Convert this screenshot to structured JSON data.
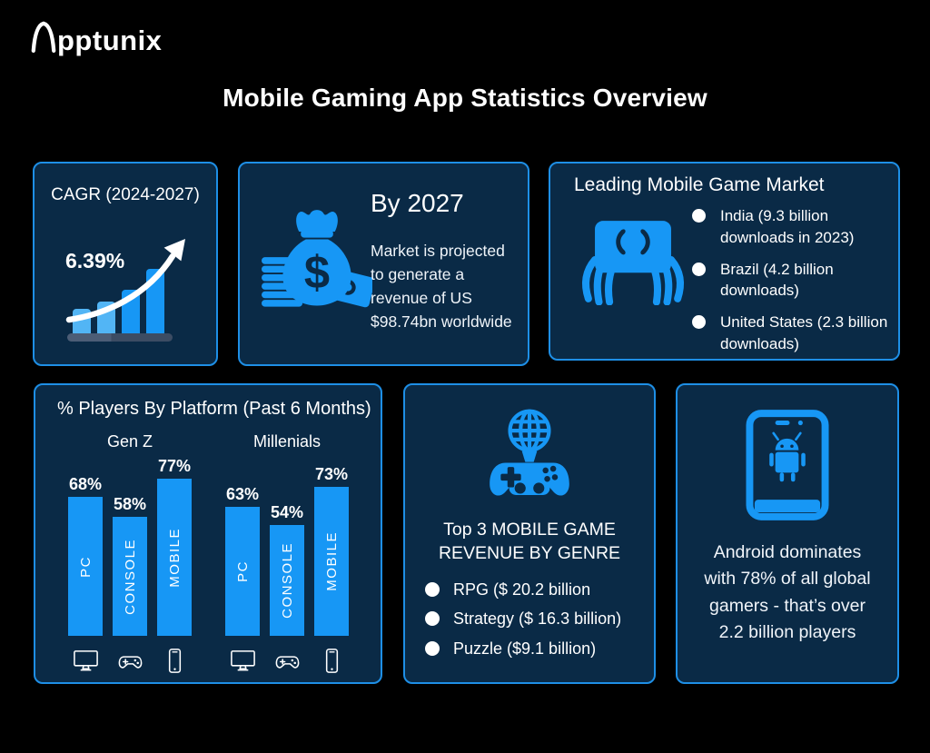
{
  "page": {
    "logo": {
      "brand_full": "Apptunix",
      "brand_rest": "pptunix"
    },
    "title": "Mobile Gaming App Statistics Overview"
  },
  "theme": {
    "background": "#000000",
    "card_bg": "#0a2a46",
    "card_border": "#1e8fe6",
    "accent_blue": "#1797f5",
    "light_blue": "#52b5f5",
    "base_gray": "#42536b",
    "text_white": "#ffffff"
  },
  "cards": {
    "cagr": {
      "title": "CAGR (2024-2027)",
      "value": "6.39%",
      "icon": "growth-bars-arrow-icon"
    },
    "projection": {
      "heading": "By 2027",
      "body": "Market is projected to generate a revenue of US $98.74bn worldwide",
      "icon": "money-bag-icon"
    },
    "markets": {
      "title": "Leading Mobile Game Market",
      "icon": "hands-holding-phone-icon",
      "items": [
        "India (9.3 billion downloads in 2023)",
        "Brazil (4.2 billion downloads)",
        "United States (2.3 billion downloads)"
      ]
    },
    "platform": {
      "title": "% Players By Platform (Past 6 Months)",
      "category_icons": [
        "monitor-icon",
        "gamepad-icon",
        "smartphone-icon"
      ]
    },
    "genres": {
      "icon": "globe-gamepad-icon",
      "heading": "Top 3 MOBILE GAME REVENUE BY GENRE",
      "items": [
        "RPG ($ 20.2 billion",
        "Strategy ($ 16.3 billion)",
        "Puzzle ($9.1 billion)"
      ]
    },
    "android": {
      "icon": "android-phone-icon",
      "body": "Android dominates with 78% of all global gamers - that’s over 2.2 billion players"
    }
  },
  "chart_data": [
    {
      "type": "bar",
      "title": "% Players By Platform (Past 6 Months)",
      "categories": [
        "PC",
        "CONSOLE",
        "MOBILE"
      ],
      "series": [
        {
          "name": "Gen Z",
          "values": [
            68,
            58,
            77
          ]
        },
        {
          "name": "Millenials",
          "values": [
            63,
            54,
            73
          ]
        }
      ],
      "unit": "%",
      "ylim": [
        0,
        100
      ],
      "value_labels": true,
      "legend_position": "group-labels-above-bars",
      "grid": false
    },
    {
      "type": "bar",
      "title": "CAGR (2024-2027)",
      "annotation": "6.39%",
      "values": [
        27,
        35,
        48,
        71
      ],
      "ylim": [
        0,
        100
      ],
      "grid": false
    }
  ]
}
